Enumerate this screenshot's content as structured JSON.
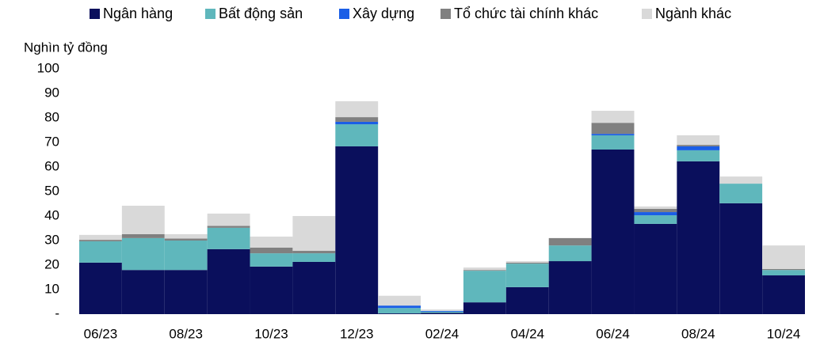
{
  "chart_data": {
    "type": "stacked_bar",
    "y_label": "Nghìn tỷ đồng",
    "categories": [
      "06/23",
      null,
      "08/23",
      null,
      "10/23",
      null,
      "12/23",
      null,
      "02/24",
      null,
      "04/24",
      null,
      "06/24",
      null,
      "08/24",
      null,
      "10/24"
    ],
    "series": [
      {
        "name": "Ngân hàng",
        "color": "#0a0f5c",
        "values": [
          21,
          18,
          18,
          26.5,
          19.4,
          21.3,
          68.4,
          0.3,
          0.5,
          4.8,
          11,
          21.6,
          67.1,
          36.8,
          62.3,
          45.2,
          15.8
        ]
      },
      {
        "name": "Bất động sản",
        "color": "#5fb7bc",
        "values": [
          8.7,
          13,
          12,
          8.7,
          5.4,
          3.5,
          9,
          2.2,
          0.5,
          12.9,
          9.6,
          6.4,
          5.8,
          3.5,
          4.5,
          8,
          2.2
        ]
      },
      {
        "name": "Xây dựng",
        "color": "#1a5ee6",
        "values": [
          0,
          0,
          0,
          0,
          0,
          0,
          1,
          1,
          0.3,
          0,
          0,
          0,
          0.6,
          1.3,
          1.6,
          0,
          0
        ]
      },
      {
        "name": "Tổ chức tài chính khác",
        "color": "#808080",
        "values": [
          0.6,
          1.6,
          0.8,
          0.8,
          2.3,
          1,
          1.9,
          0,
          0,
          0.3,
          0.4,
          3,
          4.5,
          1.3,
          0.6,
          0,
          0.4
        ]
      },
      {
        "name": "Ngành khác",
        "color": "#d9d9d9",
        "values": [
          2,
          11.6,
          1.8,
          5,
          4.5,
          14.2,
          6.5,
          4,
          0.6,
          1,
          0.6,
          0,
          4.9,
          1,
          3.9,
          2.9,
          9.6
        ]
      }
    ],
    "ylim": [
      0,
      100
    ],
    "yticks": [
      {
        "value": 0,
        "label": "-"
      },
      10,
      20,
      30,
      40,
      50,
      60,
      70,
      80,
      90,
      100
    ],
    "legend": "top"
  }
}
